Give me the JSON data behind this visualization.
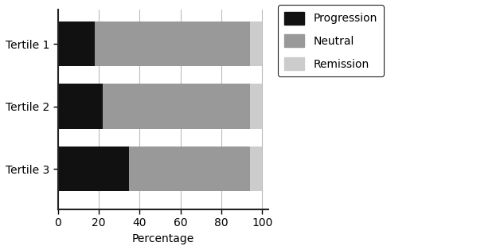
{
  "categories": [
    "Tertile 1",
    "Tertile 2",
    "Tertile 3"
  ],
  "progression": [
    18,
    22,
    35
  ],
  "neutral": [
    76,
    72,
    59
  ],
  "remission": [
    6,
    6,
    6
  ],
  "colors": {
    "progression": "#111111",
    "neutral": "#999999",
    "remission": "#cccccc"
  },
  "xlabel": "Percentage",
  "xlim": [
    0,
    103
  ],
  "xticks": [
    0,
    20,
    40,
    60,
    80,
    100
  ],
  "legend_labels": [
    "Progression",
    "Neutral",
    "Remission"
  ],
  "bar_height": 0.72,
  "figsize": [
    6.33,
    3.14
  ],
  "dpi": 100,
  "grid_color": "#bbbbbb",
  "spine_color": "#222222",
  "ylabel_fontsize": 10,
  "xlabel_fontsize": 10,
  "tick_fontsize": 10
}
